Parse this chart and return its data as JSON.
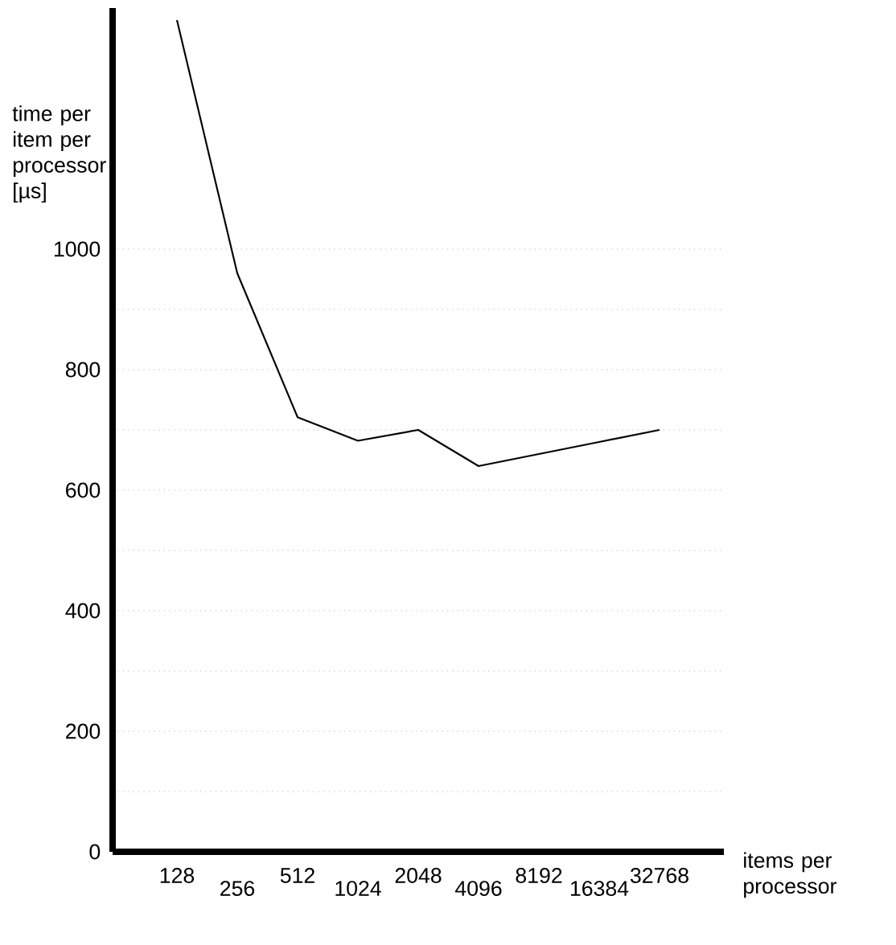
{
  "chart_data": {
    "type": "line",
    "xlabel": "items per processor",
    "ylabel": "time per item per processor [µs]",
    "categories": [
      "128",
      "256",
      "512",
      "1024",
      "2048",
      "4096",
      "8192",
      "16384",
      "32768"
    ],
    "series": [
      {
        "color": "#000000",
        "values": [
          1380,
          960,
          721,
          682,
          700,
          640,
          660,
          680,
          700
        ]
      }
    ],
    "ylim": [
      0,
      1400
    ],
    "yticks": [
      0,
      {
        "value": 100,
        "label": null
      },
      200,
      {
        "value": 300,
        "label": null
      },
      400,
      {
        "value": 500,
        "label": null
      },
      600,
      {
        "value": 700,
        "label": null
      },
      800,
      {
        "value": 900,
        "label": null
      },
      1000
    ],
    "grid": "y",
    "marker": "none",
    "line_style": "solid"
  }
}
